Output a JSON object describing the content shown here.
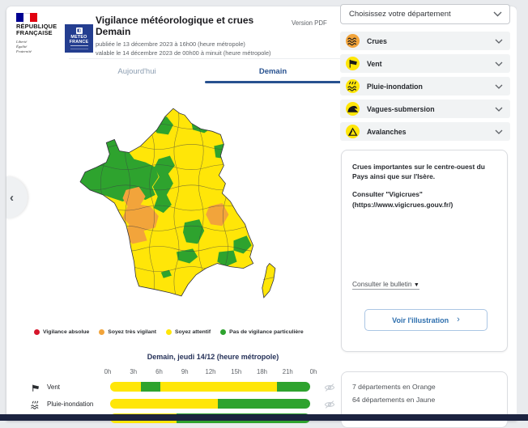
{
  "brand": {
    "republique": {
      "line1": "RÉPUBLIQUE",
      "line2": "FRANÇAISE",
      "motto1": "Liberté",
      "motto2": "Égalité",
      "motto3": "Fraternité"
    },
    "meteo_france": {
      "line1": "METEO",
      "line2": "FRANCE"
    }
  },
  "header": {
    "title_line1": "Vigilance météorologique et crues",
    "title_line2": "Demain",
    "published": "publiée le 13 décembre 2023 à 16h00 (heure métropole)",
    "valid": "valable le 14 décembre 2023 de 00h00 à minuit (heure métropole)",
    "version_pdf": "Version PDF"
  },
  "tabs": {
    "today": "Aujourd'hui",
    "tomorrow": "Demain"
  },
  "department_select": {
    "placeholder": "Choisissez votre département"
  },
  "hazards": [
    {
      "label": "Crues",
      "icon": "waves-icon",
      "level_color": "#F2A43B"
    },
    {
      "label": "Vent",
      "icon": "windsock-icon",
      "level_color": "#FFE608"
    },
    {
      "label": "Pluie-inondation",
      "icon": "rain-flood-icon",
      "level_color": "#FFE608"
    },
    {
      "label": "Vagues-submersion",
      "icon": "wave-icon",
      "level_color": "#FFE608"
    },
    {
      "label": "Avalanches",
      "icon": "avalanche-icon",
      "level_color": "#FFE608"
    }
  ],
  "bulletin": {
    "text_line1": "Crues importantes sur le centre-ouest du Pays ainsi que sur l'Isère.",
    "text_line2": "Consulter \"Vigicrues\" (https://www.vigicrues.gouv.fr/)",
    "link_label": "Consulter le bulletin",
    "button_label": "Voir l'illustration"
  },
  "counts": {
    "line1": "7 départements en Orange",
    "line2": "64 départements en Jaune"
  },
  "legend": [
    {
      "label": "Vigilance absolue",
      "color": "#D6152B"
    },
    {
      "label": "Soyez très vigilant",
      "color": "#F2A43B"
    },
    {
      "label": "Soyez attentif",
      "color": "#FFE608"
    },
    {
      "label": "Pas de vigilance particulière",
      "color": "#2EA32E"
    }
  ],
  "timeline": {
    "title": "Demain, jeudi 14/12 (heure métropole)",
    "hours": [
      "0h",
      "3h",
      "6h",
      "9h",
      "12h",
      "15h",
      "18h",
      "21h",
      "0h"
    ],
    "rows": [
      {
        "label": "Vent",
        "icon": "windsock-icon",
        "eye_visible": true,
        "segments": [
          {
            "color": "#FFE608",
            "from": 0,
            "to": 15.5
          },
          {
            "color": "#2EA32E",
            "from": 15.5,
            "to": 25
          },
          {
            "color": "#FFE608",
            "from": 25,
            "to": 83.5
          },
          {
            "color": "#2EA32E",
            "from": 83.5,
            "to": 100
          }
        ]
      },
      {
        "label": "Pluie-inondation",
        "icon": "rain-flood-icon",
        "eye_visible": true,
        "segments": [
          {
            "color": "#FFE608",
            "from": 0,
            "to": 54
          },
          {
            "color": "#2EA32E",
            "from": 54,
            "to": 100
          }
        ]
      },
      {
        "label": "",
        "icon": "",
        "eye_visible": false,
        "segments": [
          {
            "color": "#FFE608",
            "from": 0,
            "to": 33
          },
          {
            "color": "#2EA32E",
            "from": 33,
            "to": 100
          }
        ]
      }
    ]
  },
  "map": {
    "colors": {
      "yellow": "#FFE608",
      "green": "#2EA32E",
      "orange": "#F2A43B"
    }
  }
}
